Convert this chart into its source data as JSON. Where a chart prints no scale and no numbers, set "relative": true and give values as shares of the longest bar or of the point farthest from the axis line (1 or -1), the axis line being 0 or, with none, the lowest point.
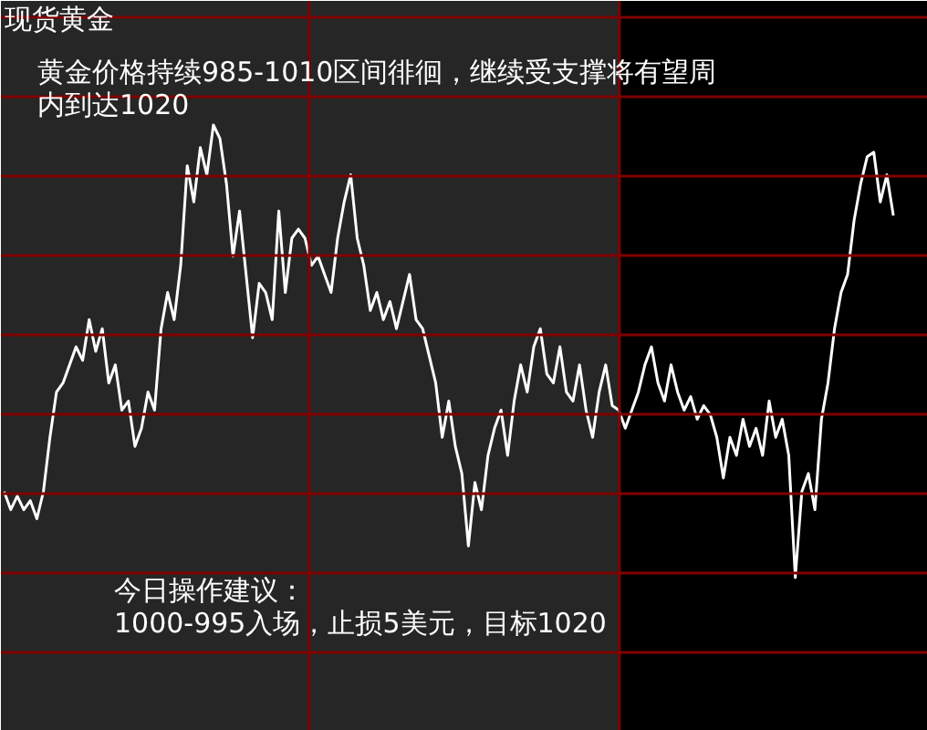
{
  "chart_data": {
    "type": "line",
    "title": "现货黄金",
    "subtitle": "黄金价格持续985-1010区间徘徊，继续受支撑将有望周内到达1020",
    "annotations": [
      "今日操作建议：",
      "1000-995入场，止损5美元，目标1020"
    ],
    "relative": true,
    "tick_labels": false,
    "grid": true,
    "line_style": "solid",
    "marker": "none",
    "categories": [
      null,
      null,
      null,
      null,
      null,
      null,
      null,
      null,
      null,
      null,
      null,
      null,
      null,
      null,
      null,
      null,
      null,
      null,
      null,
      null,
      null,
      null,
      null,
      null,
      null,
      null,
      null,
      null,
      null,
      null,
      null,
      null,
      null,
      null,
      null,
      null,
      null,
      null,
      null,
      null,
      null,
      null,
      null,
      null,
      null,
      null,
      null,
      null,
      null,
      null,
      null,
      null,
      null,
      null,
      null,
      null,
      null,
      null,
      null,
      null,
      null,
      null,
      null,
      null,
      null,
      null,
      null,
      null,
      null,
      null,
      null,
      null,
      null,
      null,
      null,
      null,
      null,
      null,
      null,
      null,
      null,
      null,
      null,
      null,
      null,
      null,
      null,
      null,
      null,
      null,
      null,
      null,
      null,
      null,
      null,
      null,
      null,
      null,
      null,
      null,
      null,
      null,
      null,
      null,
      null,
      null,
      null,
      null,
      null,
      null,
      null,
      null,
      null,
      null,
      null,
      null,
      null,
      null,
      null,
      null,
      null,
      null,
      null,
      null,
      null,
      null,
      null,
      null,
      null,
      null,
      null,
      null,
      null,
      null,
      null,
      null,
      null
    ],
    "series": [
      {
        "color": "#ffffff",
        "values": [
          0.19,
          0.15,
          0.18,
          0.15,
          0.17,
          0.13,
          0.19,
          0.31,
          0.41,
          0.43,
          0.47,
          0.51,
          0.48,
          0.57,
          0.5,
          0.55,
          0.43,
          0.47,
          0.37,
          0.39,
          0.29,
          0.33,
          0.41,
          0.37,
          0.55,
          0.63,
          0.57,
          0.69,
          0.91,
          0.83,
          0.95,
          0.89,
          1,
          0.97,
          0.87,
          0.71,
          0.81,
          0.67,
          0.53,
          0.65,
          0.63,
          0.57,
          0.81,
          0.63,
          0.75,
          0.77,
          0.75,
          0.69,
          0.71,
          0.67,
          0.63,
          0.75,
          0.83,
          0.89,
          0.75,
          0.69,
          0.59,
          0.63,
          0.57,
          0.61,
          0.55,
          0.61,
          0.67,
          0.57,
          0.55,
          0.49,
          0.43,
          0.31,
          0.39,
          0.29,
          0.23,
          0.07,
          0.21,
          0.15,
          0.27,
          0.33,
          0.37,
          0.27,
          0.39,
          0.47,
          0.41,
          0.51,
          0.55,
          0.45,
          0.43,
          0.51,
          0.41,
          0.39,
          0.47,
          0.37,
          0.31,
          0.41,
          0.47,
          0.38,
          0.37,
          0.33,
          0.37,
          0.41,
          0.47,
          0.51,
          0.43,
          0.39,
          0.47,
          0.41,
          0.37,
          0.4,
          0.35,
          0.38,
          0.36,
          0.31,
          0.22,
          0.31,
          0.27,
          0.35,
          0.29,
          0.33,
          0.27,
          0.39,
          0.31,
          0.35,
          0.27,
          0,
          0.19,
          0.23,
          0.15,
          0.35,
          0.43,
          0.55,
          0.63,
          0.67,
          0.79,
          0.87,
          0.93,
          0.94,
          0.83,
          0.89,
          0.8
        ]
      }
    ]
  }
}
